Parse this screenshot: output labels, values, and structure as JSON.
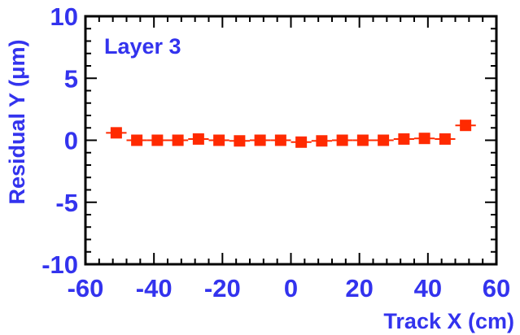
{
  "chart_data": {
    "type": "scatter",
    "annotation": "Layer 3",
    "xlabel": "Track X (cm)",
    "ylabel": "Residual Y (μm)",
    "xlim": [
      -60,
      60
    ],
    "ylim": [
      -10,
      10
    ],
    "x_ticks": [
      "-60",
      "-40",
      "-20",
      "0",
      "20",
      "40",
      "60"
    ],
    "y_ticks": [
      "-10",
      "-5",
      "0",
      "5",
      "10"
    ],
    "grid": false,
    "colors": {
      "axis_text": "#3333ee",
      "marker": "#ff2a00",
      "frame": "#000000"
    },
    "series": [
      {
        "x": [
          -51,
          -45,
          -39,
          -33,
          -27,
          -21,
          -15,
          -9,
          -3,
          3,
          9,
          15,
          21,
          27,
          33,
          39,
          45,
          51
        ],
        "y": [
          0.6,
          0.0,
          0.0,
          0.0,
          0.1,
          0.0,
          -0.05,
          0.0,
          0.0,
          -0.15,
          -0.05,
          0.0,
          0.0,
          0.0,
          0.1,
          0.15,
          0.1,
          1.2
        ],
        "xerr": 3
      }
    ]
  }
}
